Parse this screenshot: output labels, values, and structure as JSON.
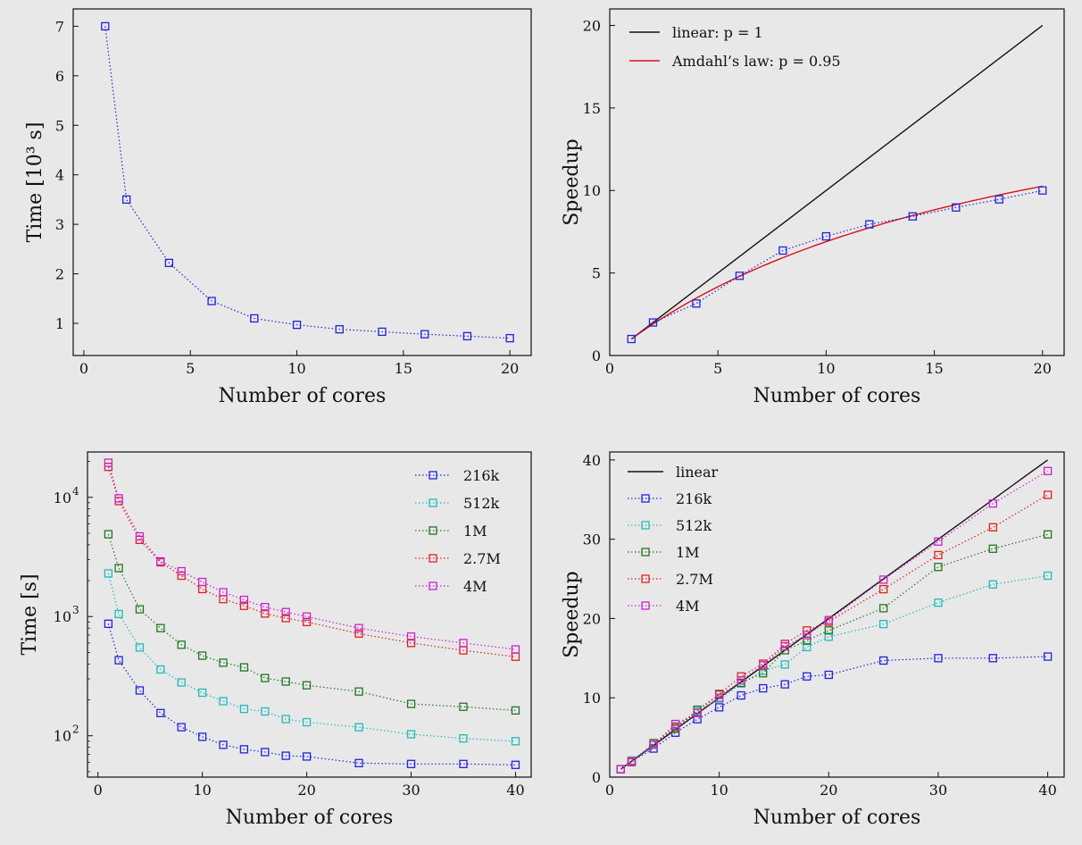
{
  "chart_data": [
    {
      "type": "line",
      "xlabel": "Number of cores",
      "ylabel": "Time [10³ s]",
      "xlim": [
        -0.5,
        21
      ],
      "ylim": [
        0.35,
        7.35
      ],
      "xticks": [
        0,
        5,
        10,
        15,
        20
      ],
      "yticks": [
        1,
        2,
        3,
        4,
        5,
        6,
        7
      ],
      "grid": false,
      "series": [
        {
          "color": "#2222dd",
          "x": [
            1,
            2,
            4,
            6,
            8,
            10,
            12,
            14,
            16,
            18,
            20
          ],
          "y": [
            7.0,
            3.5,
            2.22,
            1.45,
            1.1,
            0.97,
            0.88,
            0.83,
            0.78,
            0.74,
            0.7
          ]
        }
      ]
    },
    {
      "type": "line",
      "xlabel": "Number of cores",
      "ylabel": "Speedup",
      "xlim": [
        0,
        21
      ],
      "ylim": [
        0,
        21
      ],
      "xticks": [
        0,
        5,
        10,
        15,
        20
      ],
      "yticks": [
        0,
        5,
        10,
        15,
        20
      ],
      "grid": false,
      "legend": "top-left",
      "lines": [
        {
          "name": "linear: p = 1",
          "color": "#111111",
          "kind": "linear",
          "x": [
            1,
            20
          ],
          "y": [
            1,
            20
          ]
        },
        {
          "name": "Amdahl’s law: p = 0.95",
          "color": "#dd1111",
          "kind": "amdahl",
          "p": 0.95,
          "x": [
            1,
            20
          ]
        }
      ],
      "series": [
        {
          "color": "#2222dd",
          "x": [
            1,
            2,
            4,
            6,
            8,
            10,
            12,
            14,
            16,
            18,
            20
          ],
          "y": [
            1.0,
            2.0,
            3.15,
            4.83,
            6.36,
            7.22,
            7.95,
            8.43,
            8.97,
            9.46,
            10.0
          ]
        }
      ]
    },
    {
      "type": "line",
      "xlabel": "Number of cores",
      "ylabel": "Time [s]",
      "yscale": "log",
      "xlim": [
        -1,
        41.5
      ],
      "ylim": [
        45,
        24000
      ],
      "xticks": [
        0,
        10,
        20,
        30,
        40
      ],
      "yticks": [
        100,
        1000,
        10000
      ],
      "ytick_labels": [
        "10",
        "10",
        "10"
      ],
      "ytick_exponents": [
        "2",
        "3",
        "4"
      ],
      "grid": false,
      "legend": "top-right",
      "x": [
        1,
        2,
        4,
        6,
        8,
        10,
        12,
        14,
        16,
        18,
        20,
        25,
        30,
        35,
        40
      ],
      "series": [
        {
          "name": "216k",
          "color": "#2222dd",
          "values": [
            870,
            430,
            240,
            155,
            118,
            98,
            84,
            77,
            73,
            68,
            67,
            59,
            58,
            58,
            57
          ]
        },
        {
          "name": "512k",
          "color": "#22bbbb",
          "values": [
            2300,
            1050,
            550,
            360,
            280,
            230,
            195,
            168,
            160,
            138,
            130,
            118,
            103,
            95,
            90
          ]
        },
        {
          "name": "1M",
          "color": "#227722",
          "values": [
            4900,
            2550,
            1150,
            800,
            580,
            470,
            410,
            375,
            305,
            285,
            265,
            235,
            185,
            175,
            163
          ]
        },
        {
          "name": "2.7M",
          "color": "#dd2222",
          "values": [
            18000,
            9300,
            4400,
            2850,
            2200,
            1700,
            1400,
            1230,
            1060,
            970,
            900,
            720,
            600,
            520,
            460
          ]
        },
        {
          "name": "4M",
          "color": "#cc22cc",
          "values": [
            19500,
            9800,
            4700,
            2900,
            2400,
            1950,
            1600,
            1380,
            1200,
            1090,
            1000,
            800,
            680,
            600,
            530
          ]
        }
      ]
    },
    {
      "type": "line",
      "xlabel": "Number of cores",
      "ylabel": "Speedup",
      "xlim": [
        0,
        41.5
      ],
      "ylim": [
        0,
        41
      ],
      "xticks": [
        0,
        10,
        20,
        30,
        40
      ],
      "yticks": [
        0,
        10,
        20,
        30,
        40
      ],
      "grid": false,
      "legend": "top-left",
      "lines": [
        {
          "name": "linear",
          "color": "#111111",
          "kind": "linear",
          "x": [
            1,
            40
          ],
          "y": [
            1,
            40
          ]
        }
      ],
      "x": [
        1,
        2,
        4,
        6,
        8,
        10,
        12,
        14,
        16,
        18,
        20,
        25,
        30,
        35,
        40
      ],
      "series": [
        {
          "name": "216k",
          "color": "#2222dd",
          "values": [
            1.0,
            2.0,
            3.6,
            5.6,
            7.3,
            8.8,
            10.3,
            11.2,
            11.7,
            12.7,
            12.9,
            14.7,
            15.0,
            15.0,
            15.2
          ]
        },
        {
          "name": "512k",
          "color": "#22bbbb",
          "values": [
            1.0,
            2.1,
            4.1,
            6.4,
            8.3,
            9.8,
            11.8,
            13.4,
            14.2,
            16.4,
            17.7,
            19.3,
            22.0,
            24.3,
            25.4
          ]
        },
        {
          "name": "1M",
          "color": "#227722",
          "values": [
            1.0,
            1.9,
            4.3,
            6.1,
            8.5,
            10.4,
            11.9,
            13.1,
            16.0,
            17.2,
            18.5,
            21.3,
            26.5,
            28.8,
            30.6
          ]
        },
        {
          "name": "2.7M",
          "color": "#dd2222",
          "values": [
            1.0,
            1.9,
            4.1,
            6.3,
            8.1,
            10.5,
            12.7,
            14.3,
            16.8,
            18.5,
            19.6,
            23.7,
            28.0,
            31.5,
            35.6
          ]
        },
        {
          "name": "4M",
          "color": "#cc22cc",
          "values": [
            1.0,
            2.0,
            4.1,
            6.7,
            8.1,
            10.0,
            12.2,
            14.1,
            16.5,
            17.9,
            19.8,
            24.9,
            29.7,
            34.5,
            38.6
          ]
        }
      ]
    }
  ]
}
